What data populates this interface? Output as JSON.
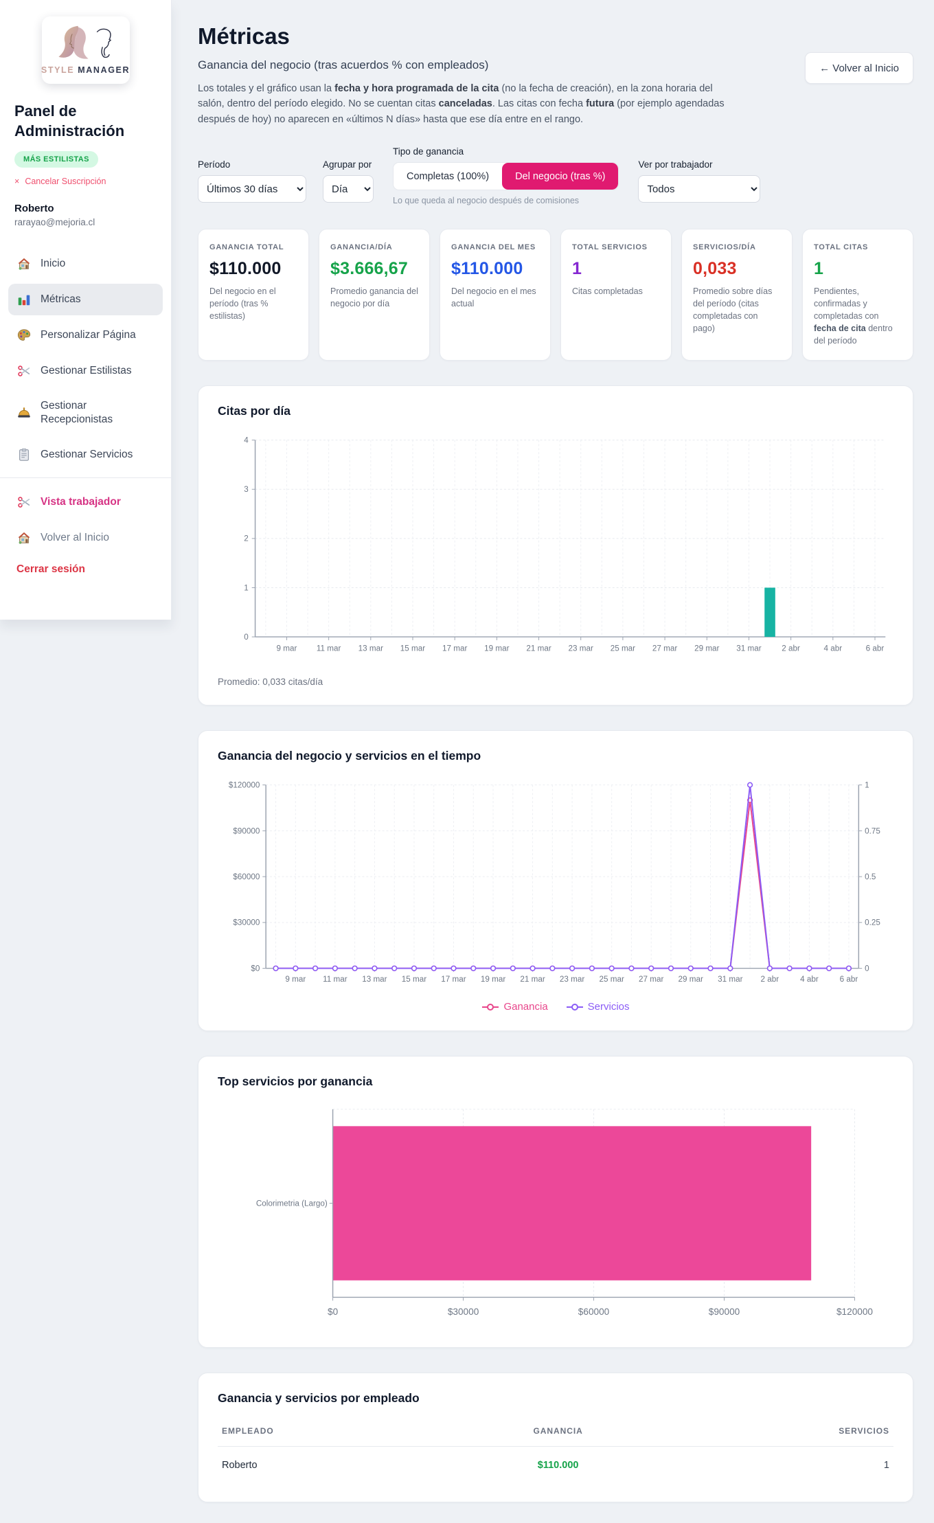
{
  "sidebar": {
    "logo": {
      "brand_style": "STYLE",
      "brand_manager": "MANAGER"
    },
    "title": "Panel de Administración",
    "badge": "MÁS ESTILISTAS",
    "cancel_x": "×",
    "cancel_label": "Cancelar Suscripción",
    "user_name": "Roberto",
    "user_email": "rarayao@mejoria.cl",
    "nav": [
      {
        "icon": "home",
        "label": "Inicio",
        "active": false
      },
      {
        "icon": "bar-chart",
        "label": "Métricas",
        "active": true
      },
      {
        "icon": "palette",
        "label": "Personalizar Página",
        "active": false
      },
      {
        "icon": "scissors",
        "label": "Gestionar Estilistas",
        "active": false
      },
      {
        "icon": "bell",
        "label": "Gestionar Recepcionistas",
        "active": false
      },
      {
        "icon": "clipboard",
        "label": "Gestionar Servicios",
        "active": false
      }
    ],
    "secondary_nav": [
      {
        "icon": "scissors",
        "label": "Vista trabajador",
        "style": "pink"
      },
      {
        "icon": "home",
        "label": "Volver al Inicio",
        "style": "gray"
      }
    ],
    "logout_label": "Cerrar sesión"
  },
  "header": {
    "title": "Métricas",
    "subtitle": "Ganancia del negocio (tras acuerdos % con empleados)",
    "description_parts": [
      {
        "t": "Los totales y el gráfico usan la "
      },
      {
        "t": "fecha y hora programada de la cita",
        "b": true
      },
      {
        "t": " (no la fecha de creación), en la zona horaria del salón, dentro del período elegido. No se cuentan citas "
      },
      {
        "t": "canceladas",
        "b": true
      },
      {
        "t": ". Las citas con fecha "
      },
      {
        "t": "futura",
        "b": true
      },
      {
        "t": " (por ejemplo agendadas después de hoy) no aparecen en «últimos N días» hasta que ese día entre en el rango."
      }
    ],
    "back_button": {
      "arrow": "←",
      "label": "Volver al Inicio"
    }
  },
  "filters": {
    "periodo": {
      "label": "Período",
      "value": "Últimos 30 días"
    },
    "agrupar": {
      "label": "Agrupar por",
      "value": "Día"
    },
    "tipo": {
      "label": "Tipo de ganancia",
      "options": [
        "Completas (100%)",
        "Del negocio (tras %)"
      ],
      "selected": 1,
      "selected_color": "#e01a70",
      "caption": "Lo que queda al negocio después de comisiones"
    },
    "trabajador": {
      "label": "Ver por trabajador",
      "value": "Todos"
    }
  },
  "kpis": [
    {
      "label": "GANANCIA TOTAL",
      "value": "$110.000",
      "color": "#111827",
      "desc": "Del negocio en el período (tras % estilistas)"
    },
    {
      "label": "GANANCIA/DÍA",
      "value": "$3.666,67",
      "color": "#16a34a",
      "desc": "Promedio ganancia del negocio por día"
    },
    {
      "label": "GANANCIA DEL MES",
      "value": "$110.000",
      "color": "#2457e6",
      "desc": "Del negocio en el mes actual"
    },
    {
      "label": "TOTAL SERVICIOS",
      "value": "1",
      "color": "#8527d1",
      "desc": "Citas completadas"
    },
    {
      "label": "SERVICIOS/DÍA",
      "value": "0,033",
      "color": "#d93025",
      "desc": "Promedio sobre días del período (citas completadas con pago)"
    },
    {
      "label": "TOTAL CITAS",
      "value": "1",
      "color": "#16a34a",
      "desc_parts": [
        {
          "t": "Pendientes, confirmadas y completadas con "
        },
        {
          "t": "fecha de cita",
          "b": true
        },
        {
          "t": " dentro del período"
        }
      ]
    }
  ],
  "chart_data": [
    {
      "type": "bar",
      "title": "Citas por día",
      "categories": [
        "8 mar",
        "9 mar",
        "10 mar",
        "11 mar",
        "12 mar",
        "13 mar",
        "14 mar",
        "15 mar",
        "16 mar",
        "17 mar",
        "18 mar",
        "19 mar",
        "20 mar",
        "21 mar",
        "22 mar",
        "23 mar",
        "24 mar",
        "25 mar",
        "26 mar",
        "27 mar",
        "28 mar",
        "29 mar",
        "30 mar",
        "31 mar",
        "1 abr",
        "2 abr",
        "3 abr",
        "4 abr",
        "5 abr",
        "6 abr"
      ],
      "values": [
        0,
        0,
        0,
        0,
        0,
        0,
        0,
        0,
        0,
        0,
        0,
        0,
        0,
        0,
        0,
        0,
        0,
        0,
        0,
        0,
        0,
        0,
        0,
        0,
        1,
        0,
        0,
        0,
        0,
        0
      ],
      "x_tick_labels": [
        "9 mar",
        "11 mar",
        "13 mar",
        "15 mar",
        "17 mar",
        "19 mar",
        "21 mar",
        "23 mar",
        "25 mar",
        "27 mar",
        "29 mar",
        "31 mar",
        "2 abr",
        "4 abr",
        "6 abr"
      ],
      "yticks": [
        0,
        1,
        2,
        3,
        4
      ],
      "ylim": [
        0,
        4
      ],
      "bar_color": "#17b3a3",
      "grid": "dashed",
      "footer": "Promedio: 0,033 citas/día"
    },
    {
      "type": "line",
      "title": "Ganancia del negocio y servicios en el tiempo",
      "x": [
        "8 mar",
        "9 mar",
        "10 mar",
        "11 mar",
        "12 mar",
        "13 mar",
        "14 mar",
        "15 mar",
        "16 mar",
        "17 mar",
        "18 mar",
        "19 mar",
        "20 mar",
        "21 mar",
        "22 mar",
        "23 mar",
        "24 mar",
        "25 mar",
        "26 mar",
        "27 mar",
        "28 mar",
        "29 mar",
        "30 mar",
        "31 mar",
        "1 abr",
        "2 abr",
        "3 abr",
        "4 abr",
        "5 abr",
        "6 abr"
      ],
      "x_tick_labels": [
        "9 mar",
        "11 mar",
        "13 mar",
        "15 mar",
        "17 mar",
        "19 mar",
        "21 mar",
        "23 mar",
        "25 mar",
        "27 mar",
        "29 mar",
        "31 mar",
        "2 abr",
        "4 abr",
        "6 abr"
      ],
      "series": [
        {
          "name": "Ganancia",
          "color": "#e8468b",
          "axis": "left",
          "values": [
            0,
            0,
            0,
            0,
            0,
            0,
            0,
            0,
            0,
            0,
            0,
            0,
            0,
            0,
            0,
            0,
            0,
            0,
            0,
            0,
            0,
            0,
            0,
            0,
            110000,
            0,
            0,
            0,
            0,
            0
          ]
        },
        {
          "name": "Servicios",
          "color": "#8b5cf6",
          "axis": "right",
          "values": [
            0,
            0,
            0,
            0,
            0,
            0,
            0,
            0,
            0,
            0,
            0,
            0,
            0,
            0,
            0,
            0,
            0,
            0,
            0,
            0,
            0,
            0,
            0,
            0,
            1,
            0,
            0,
            0,
            0,
            0
          ]
        }
      ],
      "left_axis": {
        "ticks": [
          "$0",
          "$30000",
          "$60000",
          "$90000",
          "$120000"
        ],
        "max": 120000
      },
      "right_axis": {
        "ticks": [
          "0",
          "0.25",
          "0.5",
          "0.75",
          "1"
        ],
        "max": 1
      },
      "legend_position": "bottom"
    },
    {
      "type": "horizontal-bar",
      "title": "Top servicios por ganancia",
      "categories": [
        "Colorimetria (Largo)"
      ],
      "values": [
        110000
      ],
      "x_tick_labels": [
        "$0",
        "$30000",
        "$60000",
        "$90000",
        "$120000"
      ],
      "xlim": [
        0,
        120000
      ],
      "bar_color": "#ec4899"
    },
    {
      "type": "table",
      "title": "Ganancia y servicios por empleado",
      "headers": [
        "EMPLEADO",
        "GANANCIA",
        "SERVICIOS"
      ],
      "rows": [
        [
          "Roberto",
          "$110.000",
          "1"
        ]
      ],
      "ganancia_color": "#16a34a"
    }
  ]
}
